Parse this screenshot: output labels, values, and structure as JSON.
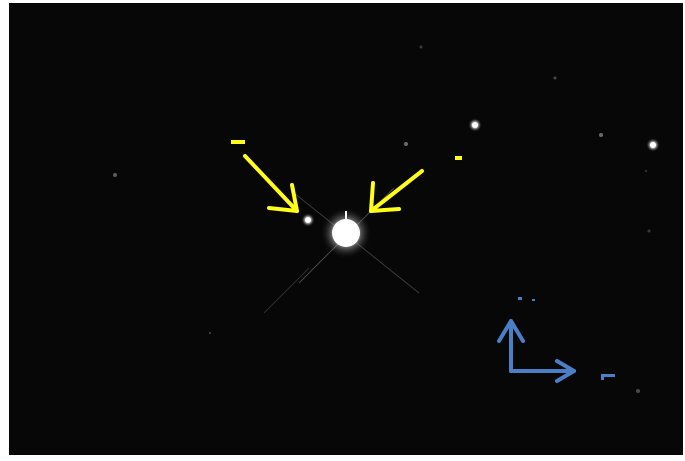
{
  "image": {
    "background_color": "#070707",
    "frame_color": "#ffffff",
    "annotation_arrow_color": "#ffff1a",
    "compass_color": "#4a7fc8",
    "annotation_labels": [
      {
        "text": "B",
        "fragment_only": true
      },
      {
        "text": "A",
        "fragment_only": true
      }
    ],
    "compass_labels": [
      {
        "text": "N",
        "fragment_only": true
      },
      {
        "text": "E",
        "fragment_only": true
      }
    ]
  }
}
